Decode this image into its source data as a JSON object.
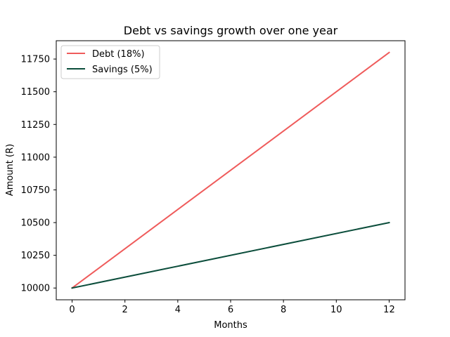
{
  "chart_data": {
    "type": "line",
    "title": "Debt vs savings growth over one year",
    "xlabel": "Months",
    "ylabel": "Amount (R)",
    "x": [
      0,
      12
    ],
    "xlim": [
      -0.6,
      12.6
    ],
    "ylim": [
      9910,
      11890
    ],
    "xticks": [
      0,
      2,
      4,
      6,
      8,
      10,
      12
    ],
    "yticks": [
      10000,
      10250,
      10500,
      10750,
      11000,
      11250,
      11500,
      11750
    ],
    "grid": false,
    "legend_position": "top-left",
    "series": [
      {
        "name": "Debt (18%)",
        "color": "#ef5b5b",
        "values": [
          10000,
          11800
        ]
      },
      {
        "name": "Savings (5%)",
        "color": "#0b4d3b",
        "values": [
          10000,
          10500
        ]
      }
    ]
  }
}
